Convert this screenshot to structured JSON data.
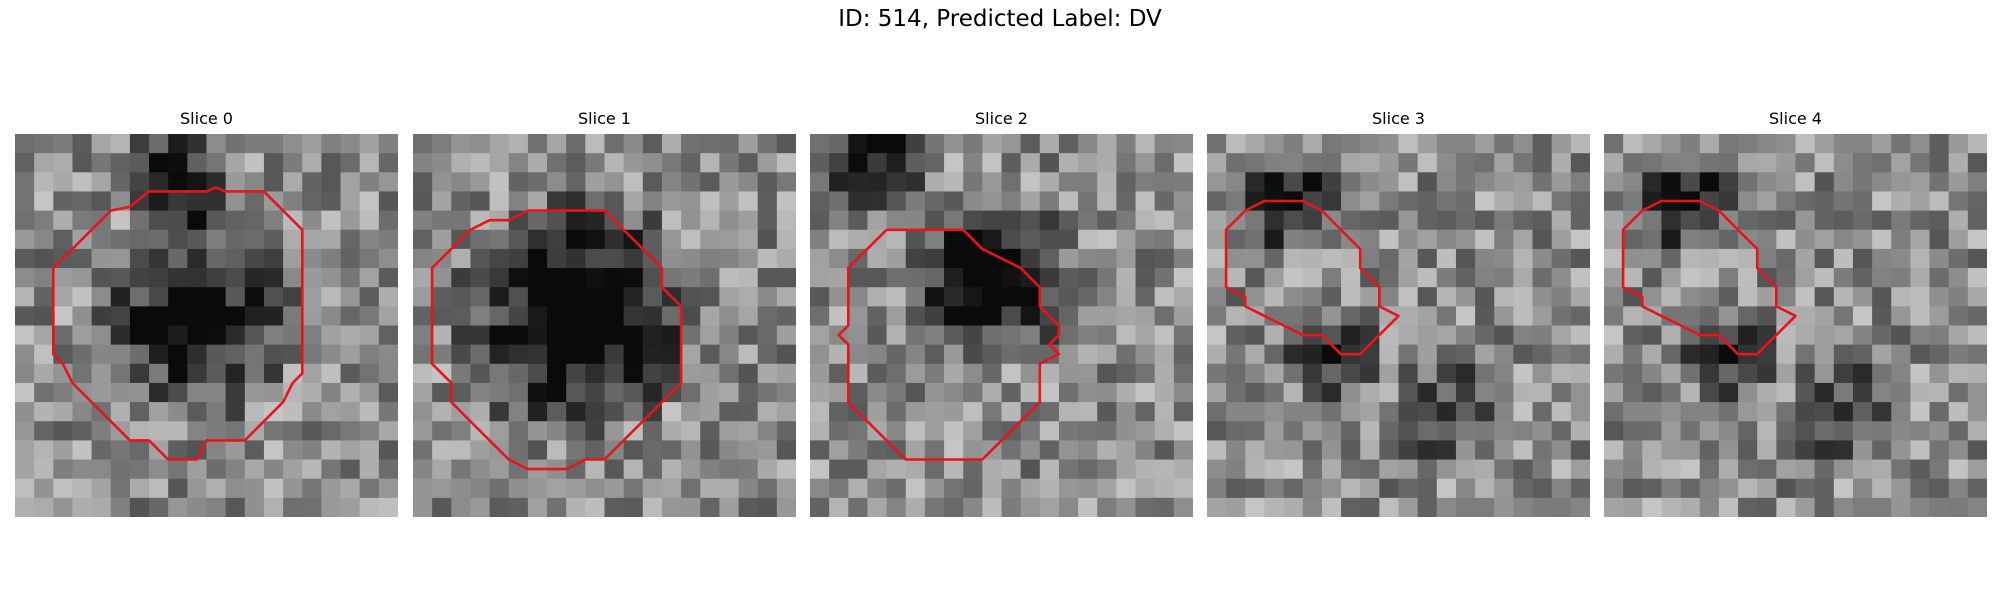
{
  "figure": {
    "title": "ID: 514, Predicted Label: DV"
  },
  "panels": [
    {
      "title": "Slice 0",
      "seed": 11,
      "contour_color": "#e8141b",
      "contour": [
        [
          10,
          3
        ],
        [
          10.5,
          2.8
        ],
        [
          11,
          3
        ],
        [
          13,
          3
        ],
        [
          14,
          4
        ],
        [
          15,
          5
        ],
        [
          15,
          6.5
        ],
        [
          15,
          8
        ],
        [
          15,
          9.5
        ],
        [
          15,
          11
        ],
        [
          15,
          12.5
        ],
        [
          14.5,
          13
        ],
        [
          14,
          14
        ],
        [
          13,
          15
        ],
        [
          12,
          16
        ],
        [
          10,
          16
        ],
        [
          9.5,
          17
        ],
        [
          8,
          17
        ],
        [
          7,
          16
        ],
        [
          6,
          16
        ],
        [
          5,
          15
        ],
        [
          4,
          14
        ],
        [
          3,
          13
        ],
        [
          2.5,
          12
        ],
        [
          2,
          11.5
        ],
        [
          2,
          10
        ],
        [
          2,
          8.5
        ],
        [
          2,
          7
        ],
        [
          3,
          6
        ],
        [
          4,
          5
        ],
        [
          5,
          4
        ],
        [
          6,
          3.8
        ],
        [
          7,
          3
        ],
        [
          8,
          3
        ],
        [
          9.5,
          3
        ],
        [
          10,
          3
        ]
      ]
    },
    {
      "title": "Slice 1",
      "seed": 23,
      "contour_color": "#e8141b",
      "contour": [
        [
          6,
          4
        ],
        [
          10,
          4
        ],
        [
          11,
          5
        ],
        [
          12,
          6
        ],
        [
          13,
          7
        ],
        [
          13,
          8
        ],
        [
          14,
          9
        ],
        [
          14,
          10
        ],
        [
          14,
          11
        ],
        [
          14,
          12
        ],
        [
          14,
          13
        ],
        [
          13,
          14
        ],
        [
          12,
          15
        ],
        [
          11,
          16
        ],
        [
          10,
          17
        ],
        [
          9,
          17
        ],
        [
          8,
          17.5
        ],
        [
          7,
          17.5
        ],
        [
          6,
          17.5
        ],
        [
          5,
          17
        ],
        [
          4,
          16
        ],
        [
          3,
          15
        ],
        [
          2,
          14
        ],
        [
          2,
          13
        ],
        [
          1,
          12
        ],
        [
          1,
          11
        ],
        [
          1,
          10
        ],
        [
          1,
          9
        ],
        [
          1,
          8
        ],
        [
          1,
          7
        ],
        [
          2,
          6
        ],
        [
          3,
          5
        ],
        [
          4,
          4.5
        ],
        [
          5,
          4.5
        ],
        [
          6,
          4
        ]
      ]
    },
    {
      "title": "Slice 2",
      "seed": 37,
      "contour_color": "#e8141b",
      "contour": [
        [
          4,
          5
        ],
        [
          8,
          5
        ],
        [
          9,
          6
        ],
        [
          10,
          6.5
        ],
        [
          11,
          7
        ],
        [
          12,
          8
        ],
        [
          12,
          9
        ],
        [
          13,
          10
        ],
        [
          13,
          10.5
        ],
        [
          12.5,
          11
        ],
        [
          13,
          11.5
        ],
        [
          12,
          12
        ],
        [
          12,
          13
        ],
        [
          12,
          14
        ],
        [
          11,
          15
        ],
        [
          10,
          16
        ],
        [
          9,
          17
        ],
        [
          8,
          17
        ],
        [
          7,
          17
        ],
        [
          5,
          17
        ],
        [
          4,
          16
        ],
        [
          3,
          15
        ],
        [
          2,
          14
        ],
        [
          2,
          13
        ],
        [
          2,
          11
        ],
        [
          1.5,
          10.5
        ],
        [
          2,
          10
        ],
        [
          2,
          8
        ],
        [
          2,
          7
        ],
        [
          3,
          6
        ],
        [
          3.5,
          5.5
        ],
        [
          4,
          5
        ]
      ]
    },
    {
      "title": "Slice 3",
      "seed": 51,
      "contour_color": "#e8141b",
      "contour": [
        [
          2,
          4
        ],
        [
          3,
          3.5
        ],
        [
          5,
          3.5
        ],
        [
          6,
          4
        ],
        [
          7,
          5
        ],
        [
          8,
          6
        ],
        [
          8,
          7
        ],
        [
          9,
          8
        ],
        [
          9,
          9
        ],
        [
          10,
          9.5
        ],
        [
          9,
          10.5
        ],
        [
          8,
          11.5
        ],
        [
          7,
          11.5
        ],
        [
          6,
          10.5
        ],
        [
          5,
          10.5
        ],
        [
          4,
          10
        ],
        [
          3,
          9.5
        ],
        [
          2,
          9
        ],
        [
          2,
          8.5
        ],
        [
          1,
          8
        ],
        [
          1,
          7
        ],
        [
          1,
          6
        ],
        [
          1,
          5
        ],
        [
          2,
          4
        ]
      ]
    },
    {
      "title": "Slice 4",
      "seed": 51,
      "contour_color": "#e8141b",
      "contour": [
        [
          2,
          4
        ],
        [
          3,
          3.5
        ],
        [
          5,
          3.5
        ],
        [
          6,
          4
        ],
        [
          7,
          5
        ],
        [
          8,
          6
        ],
        [
          8,
          7
        ],
        [
          9,
          8
        ],
        [
          9,
          9
        ],
        [
          10,
          9.5
        ],
        [
          9,
          10.5
        ],
        [
          8,
          11.5
        ],
        [
          7,
          11.5
        ],
        [
          6,
          10.5
        ],
        [
          5,
          10.5
        ],
        [
          4,
          10
        ],
        [
          3,
          9.5
        ],
        [
          2,
          9
        ],
        [
          2,
          8.5
        ],
        [
          1,
          8
        ],
        [
          1,
          7
        ],
        [
          1,
          6
        ],
        [
          1,
          5
        ],
        [
          2,
          4
        ]
      ]
    }
  ]
}
